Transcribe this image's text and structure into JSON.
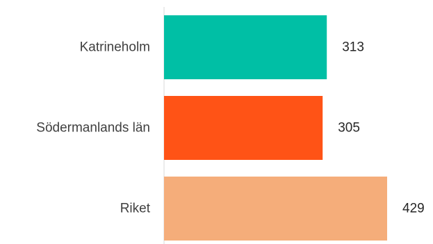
{
  "chart_data": {
    "type": "bar",
    "orientation": "horizontal",
    "categories": [
      "Katrineholm",
      "Södermanlands län",
      "Riket"
    ],
    "values": [
      313,
      305,
      429
    ],
    "colors": [
      "#00BFA5",
      "#FF5316",
      "#F5AD7A"
    ],
    "title": "",
    "xlabel": "",
    "ylabel": "",
    "xlim": [
      0,
      429
    ],
    "grid": false,
    "legend": "none",
    "data_labels": true
  }
}
